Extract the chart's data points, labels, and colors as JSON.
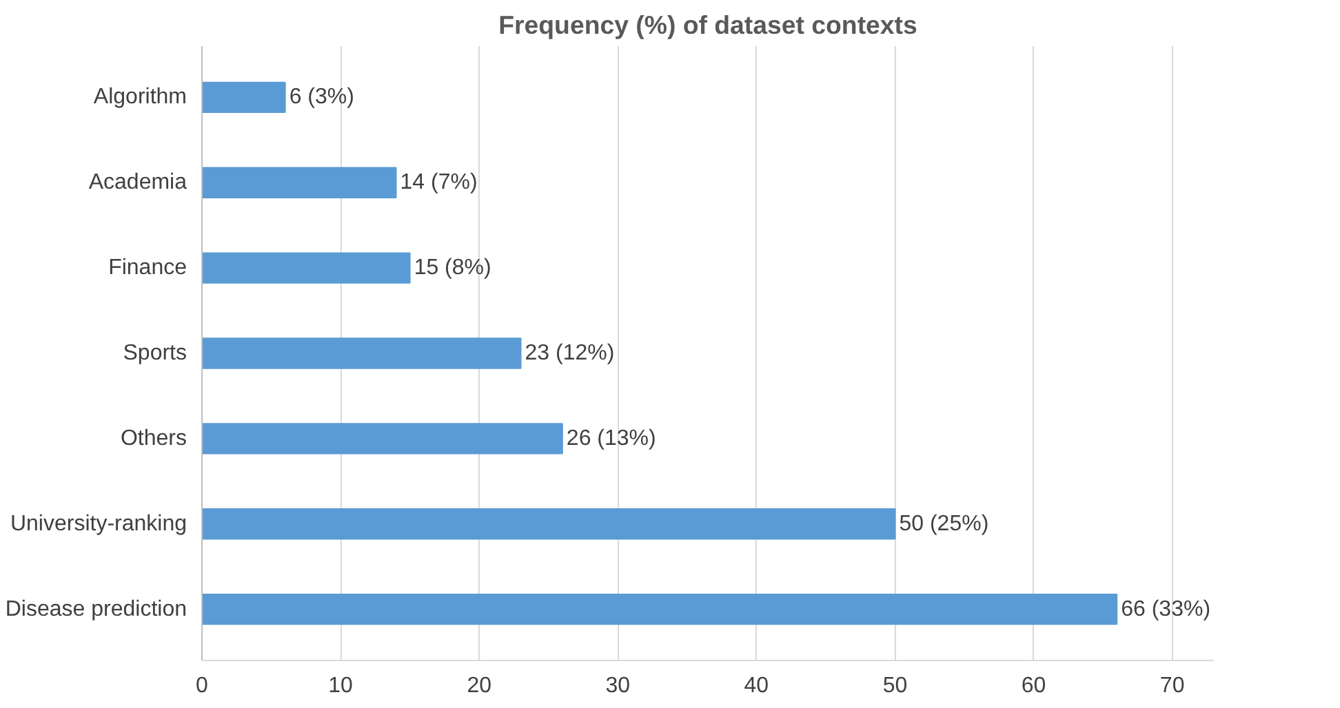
{
  "chart_data": {
    "type": "bar",
    "orientation": "horizontal",
    "title": "Frequency (%) of dataset contexts",
    "categories": [
      "Algorithm",
      "Academia",
      "Finance",
      "Sports",
      "Others",
      "University-ranking",
      "Disease prediction"
    ],
    "values": [
      6,
      14,
      15,
      23,
      26,
      50,
      66
    ],
    "value_labels": [
      "6 (3%)",
      "14 (7%)",
      "15 (8%)",
      "23 (12%)",
      "26 (13%)",
      "50 (25%)",
      "66 (33%)"
    ],
    "color": "#5b9bd5",
    "xlim": [
      0,
      73
    ],
    "xticks": [
      0,
      10,
      20,
      30,
      40,
      50,
      60,
      70
    ],
    "grid": "x"
  }
}
